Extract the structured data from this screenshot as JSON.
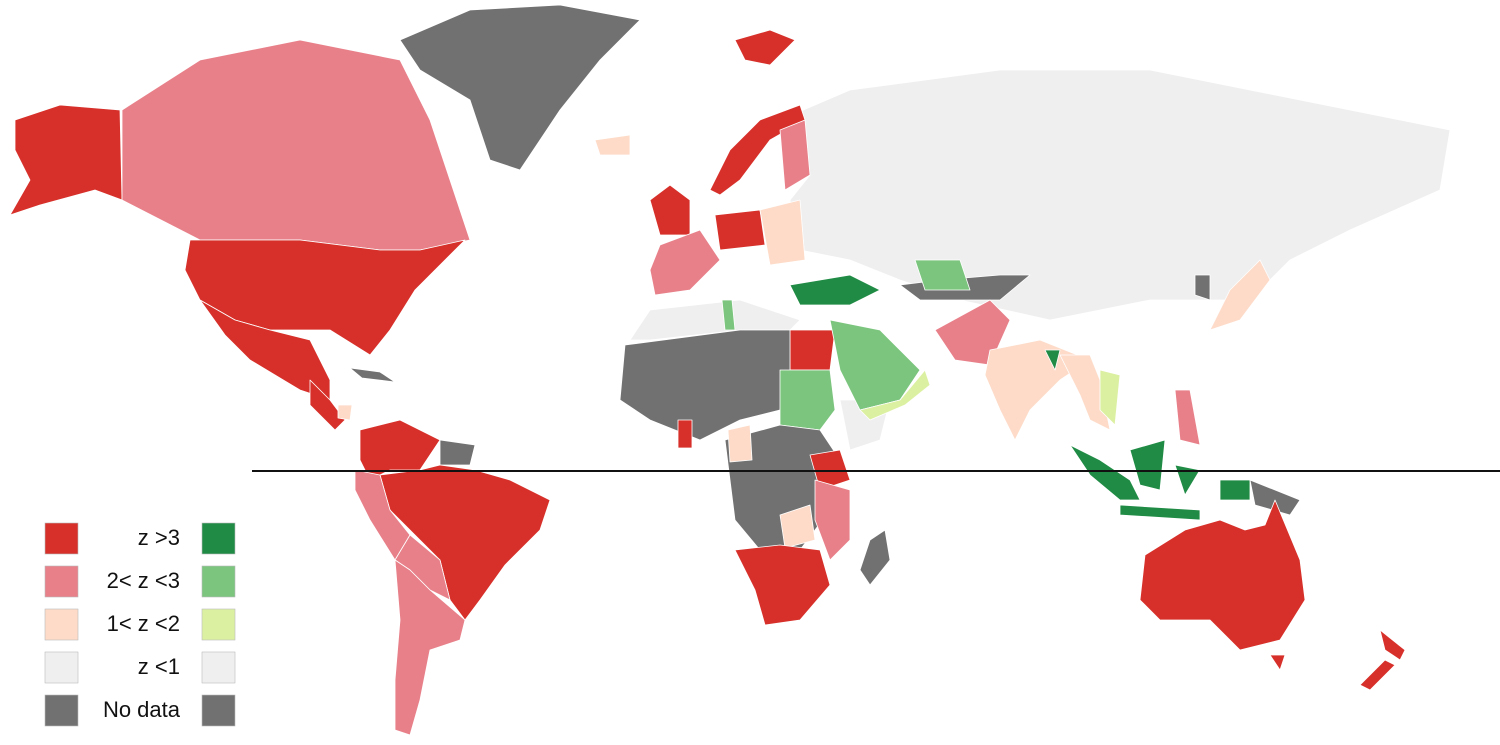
{
  "legend": {
    "rows": [
      {
        "label": "z >3",
        "colors": [
          "#d7302a",
          "#1f8b44"
        ]
      },
      {
        "label": "2< z <3",
        "colors": [
          "#e8808a",
          "#7cc57e"
        ]
      },
      {
        "label": "1< z <2",
        "colors": [
          "#fddbc8",
          "#dcf0a2"
        ]
      },
      {
        "label": "z <1",
        "colors": [
          "#efefef",
          "#efefef"
        ]
      },
      {
        "label": "No data",
        "colors": [
          "#717171",
          "#717171"
        ]
      }
    ]
  }
}
